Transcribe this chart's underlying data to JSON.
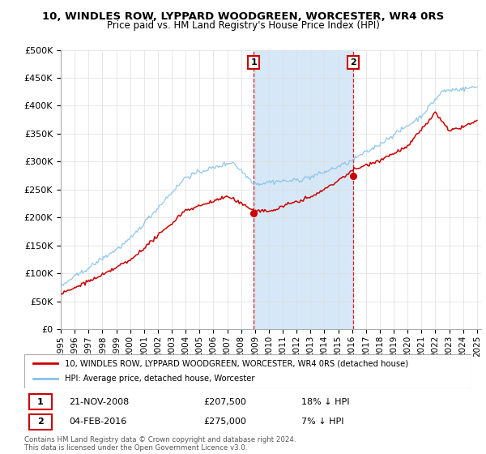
{
  "title": "10, WINDLES ROW, LYPPARD WOODGREEN, WORCESTER, WR4 0RS",
  "subtitle": "Price paid vs. HM Land Registry's House Price Index (HPI)",
  "legend_line1": "10, WINDLES ROW, LYPPARD WOODGREEN, WORCESTER, WR4 0RS (detached house)",
  "legend_line2": "HPI: Average price, detached house, Worcester",
  "annotation1_date": "21-NOV-2008",
  "annotation1_price": "£207,500",
  "annotation1_hpi": "18% ↓ HPI",
  "annotation2_date": "04-FEB-2016",
  "annotation2_price": "£275,000",
  "annotation2_hpi": "7% ↓ HPI",
  "footnote": "Contains HM Land Registry data © Crown copyright and database right 2024.\nThis data is licensed under the Open Government Licence v3.0.",
  "sale1_year": 2008.9,
  "sale1_value": 207500,
  "sale2_year": 2016.1,
  "sale2_value": 275000,
  "hpi_color": "#85c1e9",
  "price_color": "#cc0000",
  "shaded_color": "#d6e8f7",
  "box_color": "#cc0000",
  "ylim": [
    0,
    500000
  ],
  "yticks": [
    0,
    50000,
    100000,
    150000,
    200000,
    250000,
    300000,
    350000,
    400000,
    450000,
    500000
  ],
  "background_color": "#ffffff",
  "grid_color": "#dddddd"
}
